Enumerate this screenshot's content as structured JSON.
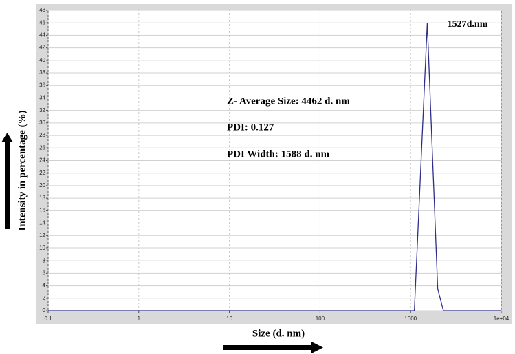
{
  "chart_data": {
    "type": "line",
    "x_label": "Size (d. nm)",
    "y_label": "Intensity in percentage (%)",
    "x": [
      0.1,
      1100,
      1527,
      1990,
      2300,
      10000
    ],
    "values": [
      0,
      0,
      46,
      3.5,
      0,
      0
    ],
    "color": "#2e2e8a",
    "xscale": "log",
    "xlim": [
      0.1,
      10000
    ],
    "xticks": [
      0.1,
      1,
      10,
      100,
      1000,
      {
        "value": 10000,
        "label": "1e+04"
      }
    ],
    "ylim": [
      0,
      48
    ],
    "yticks": [
      0,
      2,
      4,
      6,
      8,
      10,
      12,
      14,
      16,
      18,
      20,
      22,
      24,
      26,
      28,
      30,
      32,
      34,
      36,
      38,
      40,
      42,
      44,
      46,
      48
    ],
    "grid": true,
    "peak_label": "1527d.nm",
    "annotations": [
      "Z- Average Size: 4462 d. nm",
      "PDI: 0.127",
      "PDI Width: 1588 d. nm"
    ]
  }
}
